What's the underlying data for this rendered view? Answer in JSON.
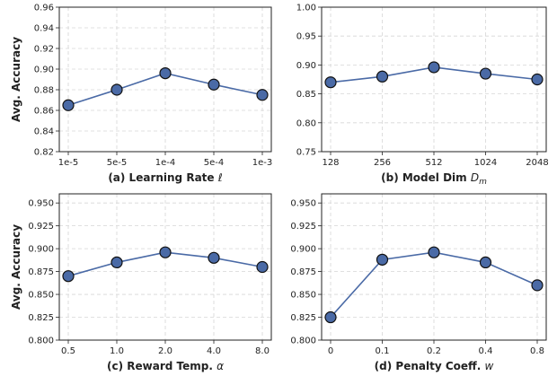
{
  "style": {
    "line_color": "#4a6aa6",
    "marker_fill": "#4a6aa6",
    "marker_edge": "#111111",
    "grid_color": "#d6d6d6"
  },
  "chart_data": [
    {
      "type": "line",
      "categories": [
        "1e-5",
        "5e-5",
        "1e-4",
        "5e-4",
        "1e-3"
      ],
      "values": [
        0.865,
        0.88,
        0.896,
        0.885,
        0.875
      ],
      "ylim": [
        0.82,
        0.96
      ],
      "yticks": [
        "0.82",
        "0.84",
        "0.86",
        "0.88",
        "0.90",
        "0.92",
        "0.94",
        "0.96"
      ],
      "ylabel": "Avg. Accuracy",
      "xlabel_text": "(a) Learning Rate ",
      "xlabel_symbol": "ℓ",
      "xlabel_sub": "",
      "grid": true
    },
    {
      "type": "line",
      "categories": [
        "128",
        "256",
        "512",
        "1024",
        "2048"
      ],
      "values": [
        0.87,
        0.88,
        0.896,
        0.885,
        0.875
      ],
      "ylim": [
        0.75,
        1.0
      ],
      "yticks": [
        "0.75",
        "0.80",
        "0.85",
        "0.90",
        "0.95",
        "1.00"
      ],
      "ylabel": "",
      "xlabel_text": "(b) Model Dim ",
      "xlabel_symbol": "D",
      "xlabel_sub": "m",
      "grid": true
    },
    {
      "type": "line",
      "categories": [
        "0.5",
        "1.0",
        "2.0",
        "4.0",
        "8.0"
      ],
      "values": [
        0.87,
        0.885,
        0.896,
        0.89,
        0.88
      ],
      "ylim": [
        0.8,
        0.96
      ],
      "yticks": [
        "0.800",
        "0.825",
        "0.850",
        "0.875",
        "0.900",
        "0.925",
        "0.950"
      ],
      "ylabel": "Avg. Accuracy",
      "xlabel_text": "(c) Reward Temp. ",
      "xlabel_symbol": "α",
      "xlabel_sub": "",
      "grid": true
    },
    {
      "type": "line",
      "categories": [
        "0",
        "0.1",
        "0.2",
        "0.4",
        "0.8"
      ],
      "values": [
        0.825,
        0.888,
        0.896,
        0.885,
        0.86
      ],
      "ylim": [
        0.8,
        0.96
      ],
      "yticks": [
        "0.800",
        "0.825",
        "0.850",
        "0.875",
        "0.900",
        "0.925",
        "0.950"
      ],
      "ylabel": "",
      "xlabel_text": "(d) Penalty Coeff. ",
      "xlabel_symbol": "w",
      "xlabel_sub": "",
      "grid": true
    }
  ]
}
